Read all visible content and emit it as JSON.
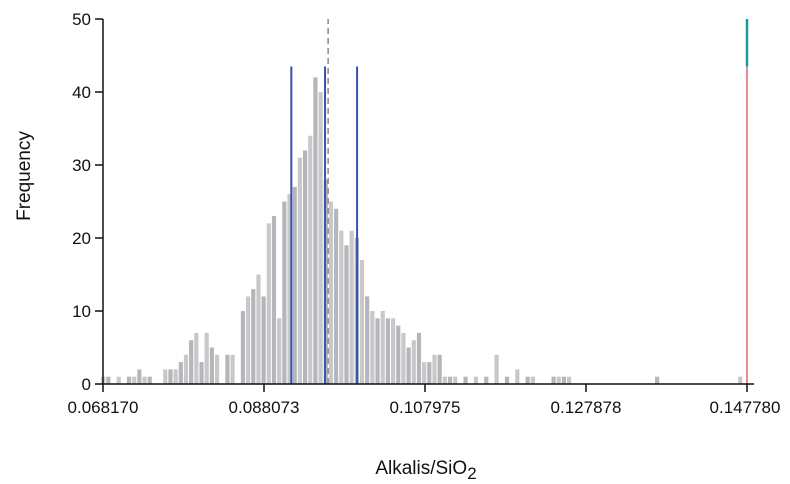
{
  "chart_data": {
    "type": "bar",
    "xlabel": "Alkalis/SiO",
    "xlabel_subscript": "2",
    "ylabel": "Frequency",
    "xlim": [
      0.06817,
      0.14778
    ],
    "ylim": [
      0,
      50
    ],
    "x_ticks": [
      "0.068170",
      "0.088073",
      "0.107975",
      "0.127878",
      "0.147780"
    ],
    "y_ticks": [
      "0",
      "10",
      "20",
      "30",
      "40",
      "50"
    ],
    "grid": false,
    "bin_width": 0.00064,
    "bins": [
      {
        "x": 0.06825,
        "count": 1
      },
      {
        "x": 0.06889,
        "count": 1
      },
      {
        "x": 0.07017,
        "count": 1
      },
      {
        "x": 0.07145,
        "count": 1
      },
      {
        "x": 0.07209,
        "count": 1
      },
      {
        "x": 0.07273,
        "count": 2
      },
      {
        "x": 0.07337,
        "count": 1
      },
      {
        "x": 0.07401,
        "count": 1
      },
      {
        "x": 0.07593,
        "count": 2
      },
      {
        "x": 0.07657,
        "count": 2
      },
      {
        "x": 0.07721,
        "count": 2
      },
      {
        "x": 0.07785,
        "count": 3
      },
      {
        "x": 0.07849,
        "count": 4
      },
      {
        "x": 0.07913,
        "count": 6
      },
      {
        "x": 0.07977,
        "count": 7
      },
      {
        "x": 0.08041,
        "count": 3
      },
      {
        "x": 0.08105,
        "count": 7
      },
      {
        "x": 0.08169,
        "count": 5
      },
      {
        "x": 0.08233,
        "count": 4
      },
      {
        "x": 0.08361,
        "count": 4
      },
      {
        "x": 0.08425,
        "count": 4
      },
      {
        "x": 0.08553,
        "count": 10
      },
      {
        "x": 0.08617,
        "count": 12
      },
      {
        "x": 0.08681,
        "count": 13
      },
      {
        "x": 0.08745,
        "count": 15
      },
      {
        "x": 0.08809,
        "count": 12
      },
      {
        "x": 0.08873,
        "count": 22
      },
      {
        "x": 0.08937,
        "count": 23
      },
      {
        "x": 0.09001,
        "count": 9
      },
      {
        "x": 0.09065,
        "count": 25
      },
      {
        "x": 0.09129,
        "count": 26
      },
      {
        "x": 0.09193,
        "count": 27
      },
      {
        "x": 0.09257,
        "count": 31
      },
      {
        "x": 0.09321,
        "count": 32
      },
      {
        "x": 0.09385,
        "count": 34
      },
      {
        "x": 0.09449,
        "count": 42
      },
      {
        "x": 0.09513,
        "count": 40
      },
      {
        "x": 0.09577,
        "count": 28
      },
      {
        "x": 0.09641,
        "count": 25
      },
      {
        "x": 0.09705,
        "count": 24
      },
      {
        "x": 0.09769,
        "count": 21
      },
      {
        "x": 0.09833,
        "count": 19
      },
      {
        "x": 0.09897,
        "count": 21
      },
      {
        "x": 0.09961,
        "count": 20
      },
      {
        "x": 0.10025,
        "count": 17
      },
      {
        "x": 0.10089,
        "count": 12
      },
      {
        "x": 0.10153,
        "count": 10
      },
      {
        "x": 0.10217,
        "count": 9
      },
      {
        "x": 0.10281,
        "count": 10
      },
      {
        "x": 0.10345,
        "count": 9
      },
      {
        "x": 0.10409,
        "count": 9
      },
      {
        "x": 0.10473,
        "count": 8
      },
      {
        "x": 0.10537,
        "count": 7
      },
      {
        "x": 0.10601,
        "count": 5
      },
      {
        "x": 0.10665,
        "count": 6
      },
      {
        "x": 0.10729,
        "count": 7
      },
      {
        "x": 0.10793,
        "count": 3
      },
      {
        "x": 0.10857,
        "count": 3
      },
      {
        "x": 0.10921,
        "count": 4
      },
      {
        "x": 0.10985,
        "count": 4
      },
      {
        "x": 0.11049,
        "count": 1
      },
      {
        "x": 0.11113,
        "count": 1
      },
      {
        "x": 0.11177,
        "count": 1
      },
      {
        "x": 0.11305,
        "count": 1
      },
      {
        "x": 0.11433,
        "count": 1
      },
      {
        "x": 0.11561,
        "count": 1
      },
      {
        "x": 0.11689,
        "count": 4
      },
      {
        "x": 0.11817,
        "count": 1
      },
      {
        "x": 0.11945,
        "count": 2
      },
      {
        "x": 0.12073,
        "count": 1
      },
      {
        "x": 0.12137,
        "count": 1
      },
      {
        "x": 0.12393,
        "count": 1
      },
      {
        "x": 0.12457,
        "count": 1
      },
      {
        "x": 0.12521,
        "count": 1
      },
      {
        "x": 0.12585,
        "count": 1
      },
      {
        "x": 0.13673,
        "count": 1
      },
      {
        "x": 0.147,
        "count": 1
      }
    ],
    "reference_lines": [
      {
        "x": 0.09145,
        "color": "#3a4fb0",
        "style": "solid",
        "top": 43.5
      },
      {
        "x": 0.09562,
        "color": "#3a4fb0",
        "style": "solid",
        "top": 43.5
      },
      {
        "x": 0.09958,
        "color": "#3a4fb0",
        "style": "solid",
        "top": 43.5
      },
      {
        "x": 0.096,
        "color": "#888888",
        "style": "dashed",
        "top": 50
      },
      {
        "x": 0.14778,
        "color": "#e58a8f",
        "style": "solid",
        "top": 43.5
      }
    ],
    "marker_segment": {
      "x": 0.14778,
      "from": 43.5,
      "to": 50,
      "color": "#1e9a9a"
    },
    "colors": {
      "bars": "#c6c8ca",
      "bars_alt": "#b4b6b9",
      "axis": "#111111",
      "ref_blue": "#3a4fb0"
    }
  }
}
